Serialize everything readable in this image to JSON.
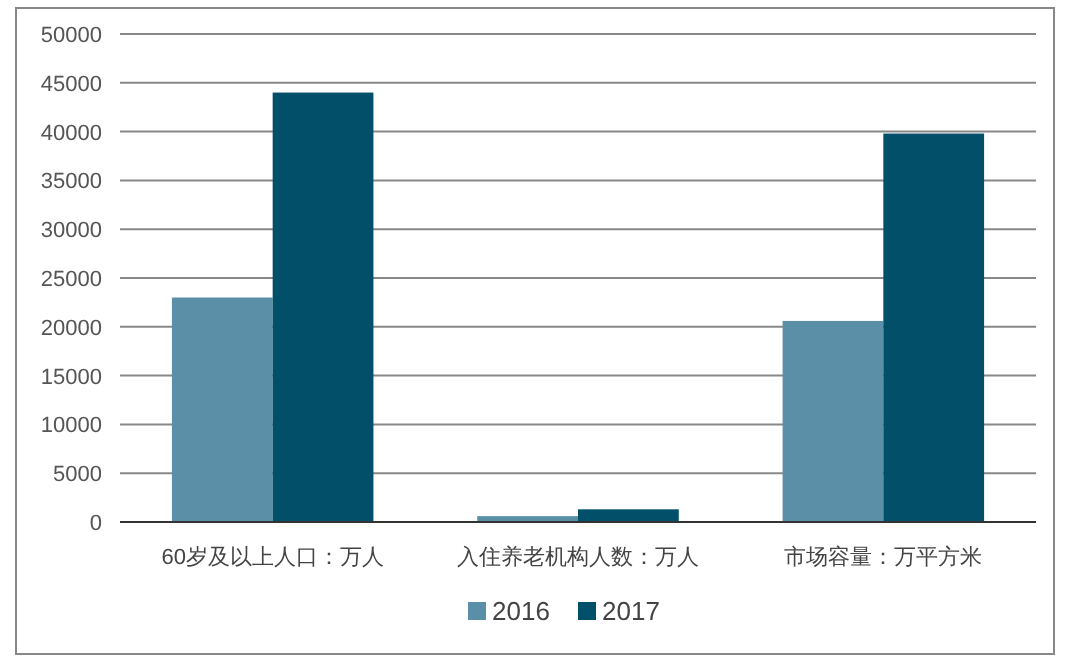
{
  "chart_data": {
    "type": "bar",
    "categories": [
      "60岁及以上人口：万人",
      "入住养老机构人数：万人",
      "市场容量：万平方米"
    ],
    "series": [
      {
        "name": "2016",
        "color": "#5b8fa8",
        "values": [
          23000,
          600,
          20600
        ]
      },
      {
        "name": "2017",
        "color": "#024f6a",
        "values": [
          44000,
          1300,
          39800
        ]
      }
    ],
    "ylim": [
      0,
      50000
    ],
    "yticks": [
      0,
      5000,
      10000,
      15000,
      20000,
      25000,
      30000,
      35000,
      40000,
      45000,
      50000
    ],
    "grid": "y",
    "legend": "bottom"
  }
}
